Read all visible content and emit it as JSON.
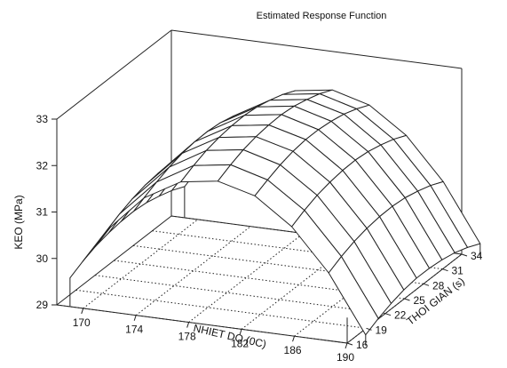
{
  "chart_data": {
    "type": "surface",
    "title": "Estimated Response Function",
    "xlabel": "NHIET DO (0C)",
    "ylabel": "THOI GIAN (s)",
    "zlabel": "KEO (MPa)",
    "x_ticks": [
      170,
      174,
      178,
      182,
      186,
      190
    ],
    "y_ticks": [
      16,
      19,
      22,
      25,
      28,
      31,
      34
    ],
    "z_ticks": [
      29,
      30,
      31,
      32,
      33
    ],
    "xlim": [
      168,
      190
    ],
    "ylim": [
      16,
      34
    ],
    "zlim": [
      29,
      33
    ],
    "grid_x": [
      169,
      171.8,
      174.6,
      177.4,
      180.2,
      183,
      185.8,
      188.6,
      191.4
    ],
    "grid_y": [
      16,
      18,
      20,
      22,
      24,
      26,
      28,
      30,
      32,
      34
    ],
    "z_values": [
      [
        29.62,
        29.76,
        29.87,
        29.94,
        29.98,
        29.99,
        29.96,
        29.89,
        29.8,
        29.67
      ],
      [
        30.75,
        30.89,
        31.0,
        31.08,
        31.12,
        31.12,
        31.09,
        31.03,
        30.93,
        30.8
      ],
      [
        31.55,
        31.68,
        31.79,
        31.87,
        31.91,
        31.92,
        31.89,
        31.82,
        31.72,
        31.59
      ],
      [
        32.0,
        32.14,
        32.25,
        32.32,
        32.36,
        32.37,
        32.34,
        32.27,
        32.18,
        32.05
      ],
      [
        32.12,
        32.26,
        32.37,
        32.44,
        32.48,
        32.49,
        32.46,
        32.39,
        32.3,
        32.17
      ],
      [
        31.91,
        32.04,
        32.15,
        32.23,
        32.27,
        32.27,
        32.24,
        32.18,
        32.08,
        31.95
      ],
      [
        31.35,
        31.49,
        31.6,
        31.67,
        31.71,
        31.72,
        31.69,
        31.62,
        31.53,
        31.4
      ],
      [
        30.46,
        30.6,
        30.71,
        30.78,
        30.82,
        30.83,
        30.8,
        30.73,
        30.64,
        30.51
      ],
      [
        29.23,
        29.37,
        29.48,
        29.56,
        29.6,
        29.6,
        29.57,
        29.51,
        29.41,
        29.28
      ]
    ],
    "grid": true,
    "legend": "none"
  }
}
